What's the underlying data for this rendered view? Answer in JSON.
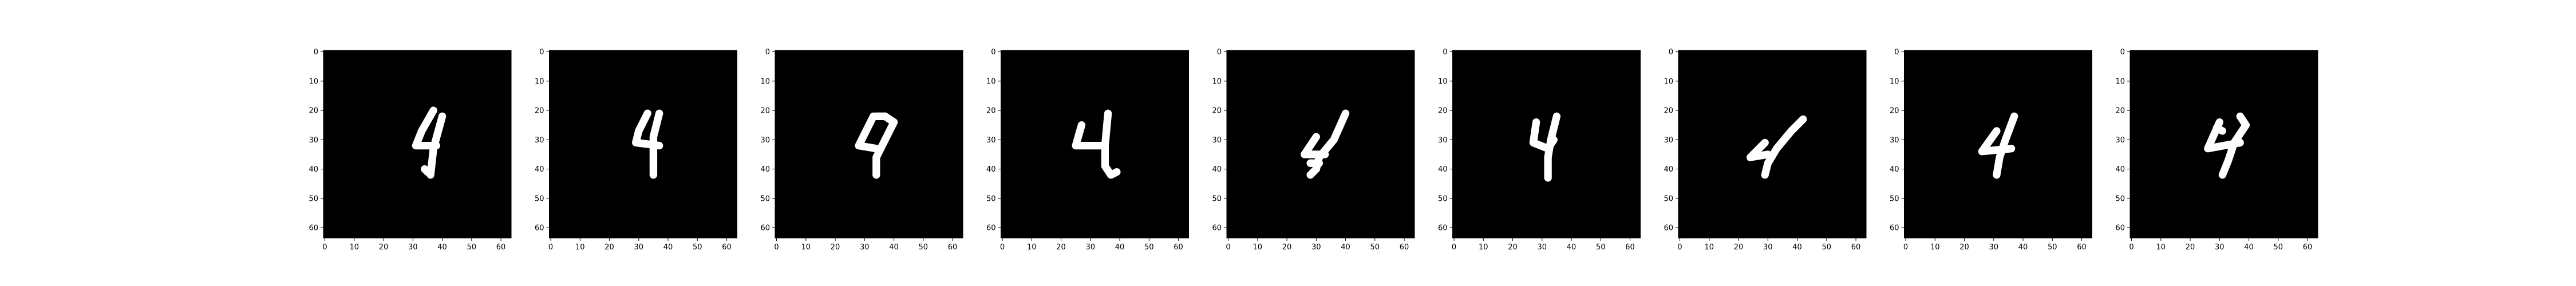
{
  "chart_data": [
    {
      "type": "image",
      "title": "",
      "xlabel": "",
      "ylabel": "",
      "xlim": [
        0,
        64
      ],
      "ylim": [
        64,
        0
      ],
      "xticks": [
        0,
        10,
        20,
        30,
        40,
        50,
        60
      ],
      "yticks": [
        0,
        10,
        20,
        30,
        40,
        50,
        60
      ],
      "colormap": "gray",
      "content": "handwritten digit 4",
      "strokes": [
        [
          [
            37,
            20
          ],
          [
            33,
            27
          ],
          [
            31,
            32
          ],
          [
            38,
            32
          ]
        ],
        [
          [
            40,
            22
          ],
          [
            37,
            33
          ],
          [
            36,
            42
          ]
        ],
        [
          [
            34,
            40
          ],
          [
            35,
            41
          ]
        ]
      ]
    },
    {
      "type": "image",
      "title": "",
      "xlabel": "",
      "ylabel": "",
      "xlim": [
        0,
        64
      ],
      "ylim": [
        64,
        0
      ],
      "xticks": [
        0,
        10,
        20,
        30,
        40,
        50,
        60
      ],
      "yticks": [
        0,
        10,
        20,
        30,
        40,
        50,
        60
      ],
      "colormap": "gray",
      "content": "handwritten digit 4",
      "strokes": [
        [
          [
            33,
            21
          ],
          [
            30,
            27
          ],
          [
            29,
            31
          ],
          [
            37,
            32
          ]
        ],
        [
          [
            37,
            21
          ],
          [
            35,
            29
          ],
          [
            35,
            42
          ]
        ]
      ]
    },
    {
      "type": "image",
      "title": "",
      "xlabel": "",
      "ylabel": "",
      "xlim": [
        0,
        64
      ],
      "ylim": [
        64,
        0
      ],
      "xticks": [
        0,
        10,
        20,
        30,
        40,
        50,
        60
      ],
      "yticks": [
        0,
        10,
        20,
        30,
        40,
        50,
        60
      ],
      "colormap": "gray",
      "content": "handwritten digit 4",
      "strokes": [
        [
          [
            33,
            22
          ],
          [
            30,
            28
          ],
          [
            28,
            32
          ],
          [
            34,
            33
          ]
        ],
        [
          [
            37,
            22
          ],
          [
            40,
            24
          ],
          [
            37,
            30
          ],
          [
            34,
            36
          ],
          [
            34,
            42
          ]
        ],
        [
          [
            37,
            22
          ],
          [
            34,
            22
          ]
        ]
      ]
    },
    {
      "type": "image",
      "title": "",
      "xlabel": "",
      "ylabel": "",
      "xlim": [
        0,
        64
      ],
      "ylim": [
        64,
        0
      ],
      "xticks": [
        0,
        10,
        20,
        30,
        40,
        50,
        60
      ],
      "yticks": [
        0,
        10,
        20,
        30,
        40,
        50,
        60
      ],
      "colormap": "gray",
      "content": "handwritten digit 4",
      "strokes": [
        [
          [
            27,
            25
          ],
          [
            25,
            32
          ],
          [
            34,
            32
          ]
        ],
        [
          [
            36,
            21
          ],
          [
            35,
            32
          ],
          [
            35,
            39
          ],
          [
            37,
            42
          ],
          [
            39,
            41
          ]
        ]
      ]
    },
    {
      "type": "image",
      "title": "",
      "xlabel": "",
      "ylabel": "",
      "xlim": [
        0,
        64
      ],
      "ylim": [
        64,
        0
      ],
      "xticks": [
        0,
        10,
        20,
        30,
        40,
        50,
        60
      ],
      "yticks": [
        0,
        10,
        20,
        30,
        40,
        50,
        60
      ],
      "colormap": "gray",
      "content": "handwritten digit 4",
      "strokes": [
        [
          [
            30,
            29
          ],
          [
            26,
            35
          ],
          [
            33,
            35
          ]
        ],
        [
          [
            40,
            21
          ],
          [
            36,
            30
          ],
          [
            31,
            36
          ],
          [
            30,
            40
          ],
          [
            28,
            42
          ]
        ],
        [
          [
            28,
            38
          ],
          [
            31,
            38
          ]
        ]
      ]
    },
    {
      "type": "image",
      "title": "",
      "xlabel": "",
      "ylabel": "",
      "xlim": [
        0,
        64
      ],
      "ylim": [
        64,
        0
      ],
      "xticks": [
        0,
        10,
        20,
        30,
        40,
        50,
        60
      ],
      "yticks": [
        0,
        10,
        20,
        30,
        40,
        50,
        60
      ],
      "colormap": "gray",
      "content": "handwritten digit 4",
      "strokes": [
        [
          [
            28,
            24
          ],
          [
            27,
            31
          ],
          [
            32,
            33
          ],
          [
            34,
            30
          ]
        ],
        [
          [
            35,
            22
          ],
          [
            33,
            30
          ],
          [
            32,
            36
          ],
          [
            32,
            43
          ]
        ]
      ]
    },
    {
      "type": "image",
      "title": "",
      "xlabel": "",
      "ylabel": "",
      "xlim": [
        0,
        64
      ],
      "ylim": [
        64,
        0
      ],
      "xticks": [
        0,
        10,
        20,
        30,
        40,
        50,
        60
      ],
      "yticks": [
        0,
        10,
        20,
        30,
        40,
        50,
        60
      ],
      "colormap": "gray",
      "content": "handwritten digit 4",
      "strokes": [
        [
          [
            29,
            31
          ],
          [
            24,
            36
          ],
          [
            30,
            35
          ]
        ],
        [
          [
            42,
            23
          ],
          [
            38,
            27
          ],
          [
            33,
            33
          ],
          [
            30,
            38
          ],
          [
            29,
            42
          ]
        ]
      ]
    },
    {
      "type": "image",
      "title": "",
      "xlabel": "",
      "ylabel": "",
      "xlim": [
        0,
        64
      ],
      "ylim": [
        64,
        0
      ],
      "xticks": [
        0,
        10,
        20,
        30,
        40,
        50,
        60
      ],
      "yticks": [
        0,
        10,
        20,
        30,
        40,
        50,
        60
      ],
      "colormap": "gray",
      "content": "handwritten digit 4",
      "strokes": [
        [
          [
            31,
            27
          ],
          [
            26,
            34
          ],
          [
            36,
            33
          ]
        ],
        [
          [
            37,
            22
          ],
          [
            34,
            30
          ],
          [
            32,
            36
          ],
          [
            31,
            42
          ]
        ]
      ]
    },
    {
      "type": "image",
      "title": "",
      "xlabel": "",
      "ylabel": "",
      "xlim": [
        0,
        64
      ],
      "ylim": [
        64,
        0
      ],
      "xticks": [
        0,
        10,
        20,
        30,
        40,
        50,
        60
      ],
      "yticks": [
        0,
        10,
        20,
        30,
        40,
        50,
        60
      ],
      "colormap": "gray",
      "content": "handwritten digit 4",
      "strokes": [
        [
          [
            30,
            24
          ],
          [
            26,
            33
          ],
          [
            37,
            31
          ]
        ],
        [
          [
            37,
            22
          ],
          [
            39,
            25
          ],
          [
            35,
            31
          ],
          [
            33,
            37
          ],
          [
            31,
            42
          ]
        ],
        [
          [
            29,
            26
          ],
          [
            31,
            27
          ]
        ]
      ]
    }
  ]
}
